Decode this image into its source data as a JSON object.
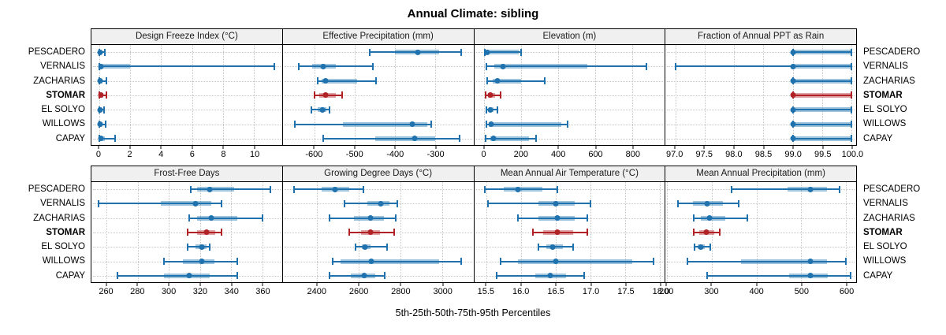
{
  "title": "Annual Climate: sibling",
  "caption": "5th-25th-50th-75th-95th Percentiles",
  "stations": [
    "PESCADERO",
    "VERNALIS",
    "ZACHARIAS",
    "STOMAR",
    "EL SOLYO",
    "WILLOWS",
    "CAPAY"
  ],
  "highlight_station": "STOMAR",
  "colors": {
    "series_blue": "#1f72ad",
    "series_blue_band": "rgba(31,114,173,0.42)",
    "series_red": "#b12226",
    "series_red_band": "rgba(177,34,38,0.42)",
    "panel_header_bg": "#f0f0f0",
    "grid_dotted": "#c9c9c9",
    "border": "#000000"
  },
  "chart_data": {
    "type": "dot-whisker-trellis",
    "percentiles": [
      5,
      25,
      50,
      75,
      95
    ],
    "legend_note": "5th-25th-50th-75th-95th Percentiles",
    "rows_layout": [
      [
        "dfi",
        "ep",
        "elev",
        "fr"
      ],
      [
        "ffd",
        "gdd",
        "mat",
        "map"
      ]
    ],
    "panels": [
      {
        "id": "dfi",
        "title": "Design Freeze Index (°C)",
        "xlim": [
          -0.5,
          11.8
        ],
        "ticks": [
          0,
          2,
          4,
          6,
          8,
          10
        ],
        "tick_labels": [
          "0",
          "2",
          "4",
          "6",
          "8",
          "10"
        ],
        "values": {
          "PESCADERO": [
            0,
            0,
            0.05,
            0.15,
            0.35
          ],
          "VERNALIS": [
            0,
            0,
            0.1,
            2.0,
            11.3
          ],
          "ZACHARIAS": [
            0,
            0,
            0.05,
            0.2,
            0.45
          ],
          "STOMAR": [
            0,
            0,
            0.1,
            0.25,
            0.45
          ],
          "EL SOLYO": [
            0,
            0,
            0.05,
            0.15,
            0.3
          ],
          "WILLOWS": [
            0,
            0,
            0.05,
            0.2,
            0.4
          ],
          "CAPAY": [
            0,
            0,
            0.1,
            0.35,
            1.05
          ]
        }
      },
      {
        "id": "ep",
        "title": "Effective Precipitation (mm)",
        "xlim": [
          -679,
          -205
        ],
        "ticks": [
          -600,
          -500,
          -400,
          -300
        ],
        "tick_labels": [
          "-600",
          "-500",
          "-400",
          "-300"
        ],
        "values": {
          "PESCADERO": [
            -462,
            -400,
            -344,
            -290,
            -235
          ],
          "VERNALIS": [
            -640,
            -606,
            -578,
            -547,
            -455
          ],
          "ZACHARIAS": [
            -592,
            -582,
            -572,
            -495,
            -447
          ],
          "STOMAR": [
            -600,
            -588,
            -573,
            -547,
            -532
          ],
          "EL SOLYO": [
            -608,
            -592,
            -581,
            -570,
            -563
          ],
          "WILLOWS": [
            -650,
            -530,
            -357,
            -320,
            -310
          ],
          "CAPAY": [
            -578,
            -450,
            -351,
            -300,
            -240
          ]
        }
      },
      {
        "id": "elev",
        "title": "Elevation (m)",
        "xlim": [
          -55,
          975
        ],
        "ticks": [
          0,
          200,
          400,
          600,
          800
        ],
        "tick_labels": [
          "0",
          "200",
          "400",
          "600",
          "800"
        ],
        "values": {
          "PESCADERO": [
            3,
            10,
            15,
            185,
            200
          ],
          "VERNALIS": [
            10,
            55,
            100,
            555,
            875
          ],
          "ZACHARIAS": [
            15,
            45,
            70,
            200,
            325
          ],
          "STOMAR": [
            5,
            18,
            33,
            60,
            88
          ],
          "EL SOLYO": [
            10,
            25,
            33,
            50,
            70
          ],
          "WILLOWS": [
            10,
            25,
            38,
            415,
            450
          ],
          "CAPAY": [
            8,
            32,
            50,
            240,
            278
          ]
        }
      },
      {
        "id": "fr",
        "title": "Fraction of Annual PPT as Rain",
        "xlim": [
          96.835,
          100.075
        ],
        "ticks": [
          97.0,
          97.5,
          98.0,
          98.5,
          99.0,
          99.5,
          100.0
        ],
        "tick_labels": [
          "97.0",
          "97.5",
          "98.0",
          "98.5",
          "99.0",
          "99.5",
          "100.0"
        ],
        "values": {
          "PESCADERO": [
            99,
            99,
            99,
            100,
            100
          ],
          "VERNALIS": [
            97,
            99,
            99,
            100,
            100
          ],
          "ZACHARIAS": [
            99,
            99,
            99,
            100,
            100
          ],
          "STOMAR": [
            99,
            99,
            99,
            100,
            100
          ],
          "EL SOLYO": [
            99,
            99,
            99,
            100,
            100
          ],
          "WILLOWS": [
            99,
            99,
            99,
            100,
            100
          ],
          "CAPAY": [
            99,
            99,
            99,
            100,
            100
          ]
        }
      },
      {
        "id": "ffd",
        "title": "Frost-Free Days",
        "xlim": [
          250.2,
          372.7
        ],
        "ticks": [
          260,
          280,
          300,
          320,
          340,
          360
        ],
        "tick_labels": [
          "260",
          "280",
          "300",
          "320",
          "340",
          "360"
        ],
        "values": {
          "PESCADERO": [
            314,
            318,
            326,
            342,
            365
          ],
          "VERNALIS": [
            255,
            295,
            317,
            327,
            334
          ],
          "ZACHARIAS": [
            313,
            318,
            327,
            344,
            360
          ],
          "STOMAR": [
            312,
            318,
            324,
            330,
            334
          ],
          "EL SOLYO": [
            312,
            317,
            321,
            324,
            326
          ],
          "WILLOWS": [
            297,
            309,
            321,
            329,
            344
          ],
          "CAPAY": [
            267,
            297,
            313,
            326,
            344
          ]
        }
      },
      {
        "id": "gdd",
        "title": "Growing Degree Days (°C)",
        "xlim": [
          2234.7,
          3149.4
        ],
        "ticks": [
          2400,
          2600,
          2800,
          3000
        ],
        "tick_labels": [
          "2400",
          "2600",
          "2800",
          "3000"
        ],
        "values": {
          "PESCADERO": [
            2290,
            2420,
            2485,
            2555,
            2620
          ],
          "VERNALIS": [
            2530,
            2640,
            2705,
            2745,
            2785
          ],
          "ZACHARIAS": [
            2460,
            2575,
            2655,
            2720,
            2775
          ],
          "STOMAR": [
            2555,
            2610,
            2655,
            2700,
            2770
          ],
          "EL SOLYO": [
            2585,
            2615,
            2630,
            2655,
            2735
          ],
          "WILLOWS": [
            2475,
            2510,
            2660,
            2985,
            3090
          ],
          "CAPAY": [
            2460,
            2560,
            2625,
            2680,
            2725
          ]
        }
      },
      {
        "id": "mat",
        "title": "Mean Annual Air Temperature (°C)",
        "xlim": [
          15.322,
          18.066
        ],
        "ticks": [
          15.5,
          16.0,
          16.5,
          17.0,
          17.5,
          18.0
        ],
        "tick_labels": [
          "15.5",
          "16.0",
          "16.5",
          "17.0",
          "17.5",
          "18.0"
        ],
        "values": {
          "PESCADERO": [
            15.48,
            15.75,
            15.95,
            16.3,
            16.52
          ],
          "VERNALIS": [
            15.52,
            16.25,
            16.5,
            16.77,
            17.0
          ],
          "ZACHARIAS": [
            15.95,
            16.25,
            16.52,
            16.77,
            16.95
          ],
          "STOMAR": [
            16.17,
            16.32,
            16.52,
            16.75,
            16.95
          ],
          "EL SOLYO": [
            16.25,
            16.36,
            16.45,
            16.6,
            16.75
          ],
          "WILLOWS": [
            15.7,
            15.95,
            16.5,
            17.6,
            17.9
          ],
          "CAPAY": [
            15.65,
            16.2,
            16.42,
            16.65,
            16.9
          ]
        }
      },
      {
        "id": "map",
        "title": "Mean Annual Precipitation (mm)",
        "xlim": [
          196.6,
          622.6
        ],
        "ticks": [
          200,
          300,
          400,
          500,
          600
        ],
        "tick_labels": [
          "200",
          "300",
          "400",
          "500",
          "600"
        ],
        "values": {
          "PESCADERO": [
            345,
            470,
            520,
            558,
            585
          ],
          "VERNALIS": [
            225,
            258,
            290,
            325,
            360
          ],
          "ZACHARIAS": [
            260,
            275,
            295,
            330,
            380
          ],
          "STOMAR": [
            260,
            272,
            288,
            305,
            318
          ],
          "EL SOLYO": [
            262,
            268,
            275,
            285,
            297
          ],
          "WILLOWS": [
            245,
            365,
            520,
            557,
            600
          ],
          "CAPAY": [
            290,
            473,
            520,
            560,
            610
          ]
        }
      }
    ]
  }
}
